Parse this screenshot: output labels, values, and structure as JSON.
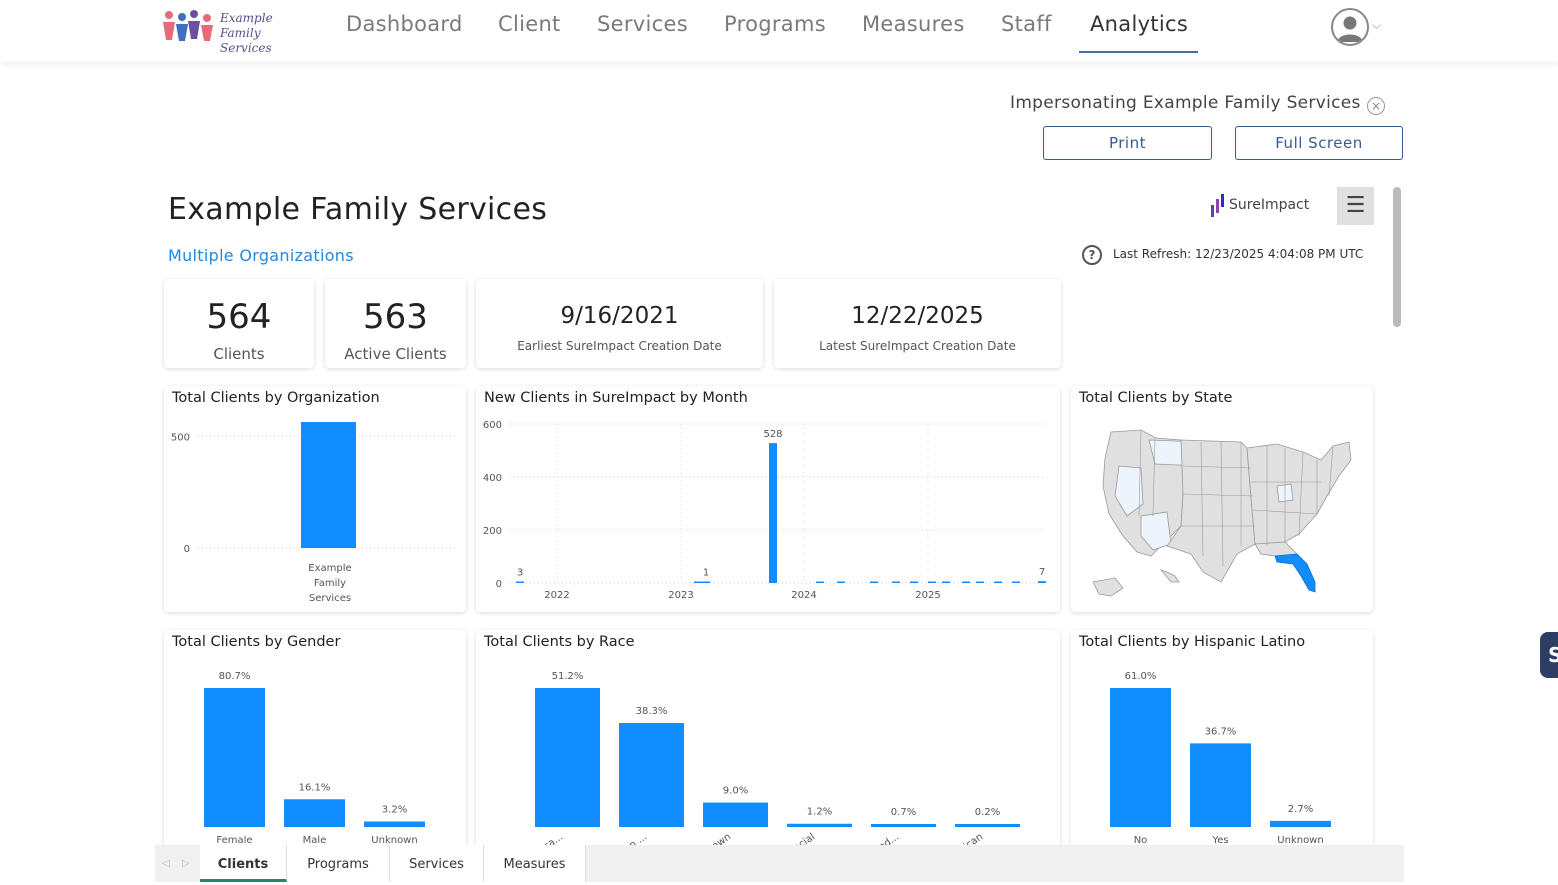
{
  "brand": {
    "logo_line1": "Example",
    "logo_line2": "Family Services"
  },
  "nav": {
    "items": [
      {
        "label": "Dashboard"
      },
      {
        "label": "Client"
      },
      {
        "label": "Services"
      },
      {
        "label": "Programs"
      },
      {
        "label": "Measures"
      },
      {
        "label": "Staff"
      },
      {
        "label": "Analytics"
      }
    ],
    "active": "Analytics"
  },
  "impersonation": {
    "text": "Impersonating Example Family Services",
    "close_glyph": "×"
  },
  "buttons": {
    "print": "Print",
    "full_screen": "Full Screen"
  },
  "report": {
    "title": "Example Family Services",
    "org_filter": "Multiple Organizations",
    "brand": "SureImpact",
    "menu_glyph": "☰",
    "help_glyph": "?",
    "last_refresh": "Last Refresh: 12/23/2025 4:04:08 PM UTC"
  },
  "kpis": [
    {
      "value": "564",
      "label": "Clients"
    },
    {
      "value": "563",
      "label": "Active Clients"
    },
    {
      "value": "9/16/2021",
      "label": "Earliest SureImpact Creation Date"
    },
    {
      "value": "12/22/2025",
      "label": "Latest SureImpact Creation Date"
    }
  ],
  "colors": {
    "bar": "#118dff",
    "accent": "#1e88e5",
    "nav_active": "#4a6fa5",
    "tab_active": "#1f8a6f",
    "map_fill": "#e0e0e0",
    "map_light": "#eef4fb"
  },
  "chart_data": [
    {
      "id": "org",
      "type": "bar",
      "title": "Total Clients by Organization",
      "categories": [
        "Example Family Services"
      ],
      "category_lines": [
        [
          "Example",
          "Family",
          "Services"
        ]
      ],
      "values": [
        564
      ],
      "yticks": [
        "0",
        "500"
      ],
      "ylim": [
        0,
        600
      ]
    },
    {
      "id": "month",
      "type": "bar",
      "title": "New Clients in SureImpact by Month",
      "yticks": [
        "0",
        "200",
        "400",
        "600"
      ],
      "ylim": [
        0,
        600
      ],
      "xticks": [
        "2022",
        "2023",
        "2024",
        "2025"
      ],
      "values": [
        3,
        1,
        1,
        0,
        0,
        1,
        528,
        1,
        1,
        1,
        1,
        1,
        1,
        2,
        1,
        2,
        1,
        1,
        7
      ],
      "labels": [
        "3",
        "",
        "",
        "",
        "",
        "1",
        "528",
        "",
        "",
        "",
        "",
        "",
        "",
        "",
        "",
        "",
        "",
        "",
        "7"
      ]
    },
    {
      "id": "state",
      "type": "map",
      "title": "Total Clients by State",
      "highlight": "Florida"
    },
    {
      "id": "gender",
      "type": "bar",
      "title": "Total Clients by Gender",
      "categories": [
        "Female",
        "Male",
        "Unknown"
      ],
      "values": [
        80.7,
        16.1,
        3.2
      ],
      "labels": [
        "80.7%",
        "16.1%",
        "3.2%"
      ],
      "ylim": [
        0,
        80.7
      ]
    },
    {
      "id": "race",
      "type": "bar",
      "title": "Total Clients by Race",
      "categories": [
        "White/Cauca...",
        "Black/African ...",
        "Unknown",
        "Multi-racial",
        "American Ind...",
        "African"
      ],
      "values": [
        51.2,
        38.3,
        9.0,
        1.2,
        0.7,
        0.2
      ],
      "labels": [
        "51.2%",
        "38.3%",
        "9.0%",
        "1.2%",
        "0.7%",
        "0.2%"
      ],
      "ylim": [
        0,
        51.2
      ]
    },
    {
      "id": "hispanic",
      "type": "bar",
      "title": "Total Clients by Hispanic Latino",
      "categories": [
        "No",
        "Yes",
        "Unknown"
      ],
      "values": [
        61.0,
        36.7,
        2.7
      ],
      "labels": [
        "61.0%",
        "36.7%",
        "2.7%"
      ],
      "ylim": [
        0,
        61.0
      ]
    }
  ],
  "tabs": [
    {
      "label": "Clients"
    },
    {
      "label": "Programs"
    },
    {
      "label": "Services"
    },
    {
      "label": "Measures"
    }
  ],
  "tab_nav": {
    "prev": "◁",
    "next": "▷"
  },
  "side_tab": {
    "label": "S"
  }
}
